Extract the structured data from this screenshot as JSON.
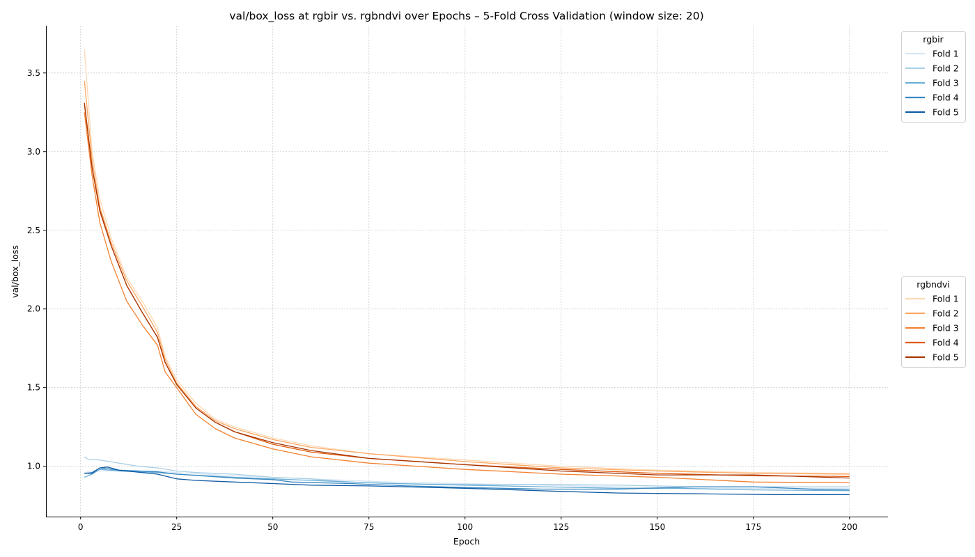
{
  "chart_data": {
    "type": "line",
    "title": "val/box_loss at rgbir vs. rgbndvi over Epochs – 5-Fold Cross Validation (window size: 20)",
    "xlabel": "Epoch",
    "ylabel": "val/box_loss",
    "xlim": [
      -9,
      210
    ],
    "ylim": [
      0.68,
      3.8
    ],
    "xticks": [
      0,
      25,
      50,
      75,
      100,
      125,
      150,
      175,
      200
    ],
    "yticks": [
      1.0,
      1.5,
      2.0,
      2.5,
      3.0,
      3.5
    ],
    "ytick_labels": [
      "1.0",
      "1.5",
      "2.0",
      "2.5",
      "3.0",
      "3.5"
    ],
    "grid": true,
    "legend_placement": "outside-right",
    "groups": [
      {
        "name": "rgbir",
        "series": [
          {
            "name": "Fold 1",
            "color": "#d6e6f4",
            "points": [
              [
                1,
                0.96
              ],
              [
                3,
                0.97
              ],
              [
                6,
                0.97
              ],
              [
                10,
                0.97
              ],
              [
                20,
                0.97
              ],
              [
                25,
                0.96
              ],
              [
                40,
                0.94
              ],
              [
                60,
                0.92
              ],
              [
                80,
                0.9
              ],
              [
                100,
                0.89
              ],
              [
                120,
                0.88
              ],
              [
                140,
                0.87
              ],
              [
                160,
                0.86
              ],
              [
                180,
                0.86
              ],
              [
                200,
                0.86
              ]
            ]
          },
          {
            "name": "Fold 2",
            "color": "#abd0e6",
            "points": [
              [
                1,
                1.06
              ],
              [
                2,
                1.045
              ],
              [
                5,
                1.04
              ],
              [
                10,
                1.02
              ],
              [
                15,
                1.0
              ],
              [
                20,
                0.99
              ],
              [
                25,
                0.97
              ],
              [
                30,
                0.96
              ],
              [
                40,
                0.95
              ],
              [
                50,
                0.93
              ],
              [
                60,
                0.92
              ],
              [
                70,
                0.9
              ],
              [
                80,
                0.89
              ],
              [
                100,
                0.885
              ],
              [
                120,
                0.885
              ],
              [
                140,
                0.88
              ],
              [
                160,
                0.87
              ],
              [
                180,
                0.87
              ],
              [
                200,
                0.87
              ]
            ]
          },
          {
            "name": "Fold 3",
            "color": "#6aaed6",
            "points": [
              [
                1,
                0.93
              ],
              [
                3,
                0.95
              ],
              [
                5,
                0.98
              ],
              [
                8,
                0.975
              ],
              [
                10,
                0.97
              ],
              [
                20,
                0.96
              ],
              [
                25,
                0.95
              ],
              [
                40,
                0.93
              ],
              [
                60,
                0.91
              ],
              [
                75,
                0.895
              ],
              [
                90,
                0.885
              ],
              [
                100,
                0.88
              ],
              [
                120,
                0.87
              ],
              [
                140,
                0.86
              ],
              [
                155,
                0.86
              ],
              [
                175,
                0.85
              ],
              [
                200,
                0.845
              ]
            ]
          },
          {
            "name": "Fold 4",
            "color": "#3787c0",
            "points": [
              [
                1,
                0.955
              ],
              [
                3,
                0.96
              ],
              [
                5,
                0.99
              ],
              [
                7,
                0.985
              ],
              [
                10,
                0.975
              ],
              [
                20,
                0.965
              ],
              [
                25,
                0.95
              ],
              [
                40,
                0.925
              ],
              [
                50,
                0.915
              ],
              [
                55,
                0.9
              ],
              [
                70,
                0.89
              ],
              [
                85,
                0.875
              ],
              [
                100,
                0.865
              ],
              [
                120,
                0.855
              ],
              [
                140,
                0.855
              ],
              [
                160,
                0.87
              ],
              [
                175,
                0.87
              ],
              [
                190,
                0.855
              ],
              [
                200,
                0.85
              ]
            ]
          },
          {
            "name": "Fold 5",
            "color": "#105ba4",
            "points": [
              [
                1,
                0.955
              ],
              [
                3,
                0.955
              ],
              [
                5,
                0.99
              ],
              [
                7,
                0.995
              ],
              [
                10,
                0.975
              ],
              [
                20,
                0.95
              ],
              [
                25,
                0.92
              ],
              [
                30,
                0.91
              ],
              [
                40,
                0.9
              ],
              [
                50,
                0.89
              ],
              [
                60,
                0.88
              ],
              [
                75,
                0.875
              ],
              [
                100,
                0.86
              ],
              [
                125,
                0.84
              ],
              [
                140,
                0.83
              ],
              [
                160,
                0.825
              ],
              [
                180,
                0.82
              ],
              [
                200,
                0.82
              ]
            ]
          }
        ]
      },
      {
        "name": "rgbndvi",
        "series": [
          {
            "name": "Fold 1",
            "color": "#fdd9b4",
            "points": [
              [
                1,
                3.65
              ],
              [
                3,
                3.0
              ],
              [
                5,
                2.7
              ],
              [
                8,
                2.45
              ],
              [
                12,
                2.2
              ],
              [
                16,
                2.05
              ],
              [
                20,
                1.88
              ],
              [
                22,
                1.7
              ],
              [
                25,
                1.55
              ],
              [
                30,
                1.4
              ],
              [
                35,
                1.3
              ],
              [
                40,
                1.25
              ],
              [
                50,
                1.18
              ],
              [
                60,
                1.13
              ],
              [
                75,
                1.08
              ],
              [
                100,
                1.04
              ],
              [
                125,
                1.0
              ],
              [
                150,
                0.975
              ],
              [
                175,
                0.96
              ],
              [
                200,
                0.955
              ]
            ]
          },
          {
            "name": "Fold 2",
            "color": "#fda762",
            "points": [
              [
                1,
                3.45
              ],
              [
                3,
                2.95
              ],
              [
                5,
                2.65
              ],
              [
                8,
                2.42
              ],
              [
                12,
                2.18
              ],
              [
                16,
                2.02
              ],
              [
                20,
                1.85
              ],
              [
                22,
                1.68
              ],
              [
                25,
                1.53
              ],
              [
                30,
                1.38
              ],
              [
                35,
                1.29
              ],
              [
                40,
                1.24
              ],
              [
                50,
                1.17
              ],
              [
                60,
                1.12
              ],
              [
                75,
                1.08
              ],
              [
                100,
                1.03
              ],
              [
                125,
                0.99
              ],
              [
                150,
                0.97
              ],
              [
                175,
                0.955
              ],
              [
                200,
                0.95
              ]
            ]
          },
          {
            "name": "Fold 3",
            "color": "#f3812f",
            "points": [
              [
                1,
                3.25
              ],
              [
                3,
                2.85
              ],
              [
                5,
                2.55
              ],
              [
                8,
                2.3
              ],
              [
                12,
                2.05
              ],
              [
                16,
                1.9
              ],
              [
                20,
                1.77
              ],
              [
                22,
                1.6
              ],
              [
                25,
                1.5
              ],
              [
                30,
                1.33
              ],
              [
                35,
                1.24
              ],
              [
                40,
                1.18
              ],
              [
                50,
                1.11
              ],
              [
                60,
                1.06
              ],
              [
                75,
                1.02
              ],
              [
                100,
                0.98
              ],
              [
                125,
                0.95
              ],
              [
                150,
                0.93
              ],
              [
                175,
                0.9
              ],
              [
                200,
                0.895
              ]
            ]
          },
          {
            "name": "Fold 4",
            "color": "#e05a0a",
            "points": [
              [
                1,
                3.3
              ],
              [
                3,
                2.9
              ],
              [
                5,
                2.62
              ],
              [
                8,
                2.4
              ],
              [
                12,
                2.15
              ],
              [
                16,
                1.98
              ],
              [
                20,
                1.82
              ],
              [
                22,
                1.66
              ],
              [
                25,
                1.52
              ],
              [
                30,
                1.37
              ],
              [
                35,
                1.28
              ],
              [
                40,
                1.22
              ],
              [
                50,
                1.14
              ],
              [
                60,
                1.09
              ],
              [
                75,
                1.05
              ],
              [
                100,
                1.01
              ],
              [
                125,
                0.98
              ],
              [
                150,
                0.955
              ],
              [
                175,
                0.94
              ],
              [
                200,
                0.935
              ]
            ]
          },
          {
            "name": "Fold 5",
            "color": "#a83503",
            "points": [
              [
                1,
                3.31
              ],
              [
                3,
                2.9
              ],
              [
                5,
                2.63
              ],
              [
                8,
                2.4
              ],
              [
                12,
                2.15
              ],
              [
                16,
                1.98
              ],
              [
                20,
                1.82
              ],
              [
                22,
                1.66
              ],
              [
                25,
                1.52
              ],
              [
                30,
                1.37
              ],
              [
                35,
                1.28
              ],
              [
                40,
                1.22
              ],
              [
                50,
                1.15
              ],
              [
                60,
                1.1
              ],
              [
                75,
                1.05
              ],
              [
                100,
                1.01
              ],
              [
                125,
                0.97
              ],
              [
                150,
                0.945
              ],
              [
                175,
                0.945
              ],
              [
                200,
                0.925
              ]
            ]
          }
        ]
      }
    ]
  }
}
